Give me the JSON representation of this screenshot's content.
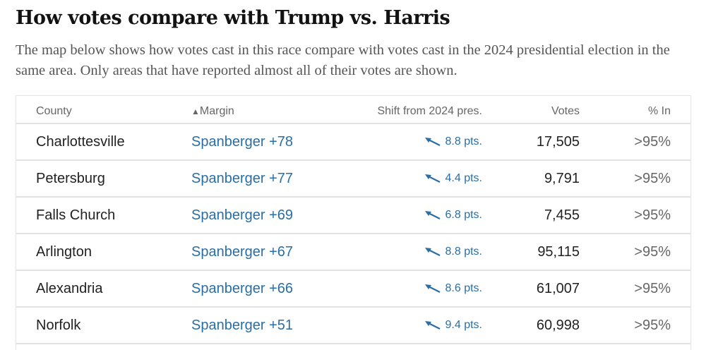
{
  "title": "How votes compare with Trump vs. Harris",
  "description": "The map below shows how votes cast in this race compare with votes cast in the 2024 presidential election in the same area. Only areas that have reported almost all of their votes are shown.",
  "accent_color": "#2a6ea6",
  "table": {
    "headers": {
      "county": "County",
      "margin_sort_icon": "▲",
      "margin": "Margin",
      "shift": "Shift from 2024 pres.",
      "votes": "Votes",
      "pct": "% In"
    },
    "rows": [
      {
        "county": "Charlottesville",
        "margin": "Spanberger +78",
        "shift_icon": "arrow-up-left-icon",
        "shift": "8.8 pts.",
        "votes": "17,505",
        "pct": ">95%"
      },
      {
        "county": "Petersburg",
        "margin": "Spanberger +77",
        "shift_icon": "arrow-up-left-icon",
        "shift": "4.4 pts.",
        "votes": "9,791",
        "pct": ">95%"
      },
      {
        "county": "Falls Church",
        "margin": "Spanberger +69",
        "shift_icon": "arrow-up-left-icon",
        "shift": "6.8 pts.",
        "votes": "7,455",
        "pct": ">95%"
      },
      {
        "county": "Arlington",
        "margin": "Spanberger +67",
        "shift_icon": "arrow-up-left-icon",
        "shift": "8.8 pts.",
        "votes": "95,115",
        "pct": ">95%"
      },
      {
        "county": "Alexandria",
        "margin": "Spanberger +66",
        "shift_icon": "arrow-up-left-icon",
        "shift": "8.6 pts.",
        "votes": "61,007",
        "pct": ">95%"
      },
      {
        "county": "Norfolk",
        "margin": "Spanberger +51",
        "shift_icon": "arrow-up-left-icon",
        "shift": "9.4 pts.",
        "votes": "60,998",
        "pct": ">95%"
      }
    ]
  }
}
